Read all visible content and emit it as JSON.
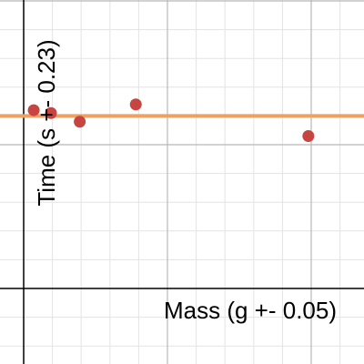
{
  "chart_data": {
    "type": "scatter",
    "xlabel": "Mass (g +- 0.05)",
    "ylabel": "Time (s +- 0.23)",
    "grid": true,
    "colors": {
      "points": "#c74440",
      "trendline": "#f0a060",
      "major_grid": "#b8b8b8",
      "minor_grid": "#e3e3e3",
      "axis": "#000000"
    },
    "series": [
      {
        "points": [
          {
            "x": 0.35,
            "y": 6.2
          },
          {
            "x": 0.95,
            "y": 6.1
          },
          {
            "x": 1.95,
            "y": 5.8
          },
          {
            "x": 3.9,
            "y": 6.4
          },
          {
            "x": 9.9,
            "y": 5.3
          }
        ]
      }
    ],
    "trendline": {
      "y": 6.0
    }
  }
}
